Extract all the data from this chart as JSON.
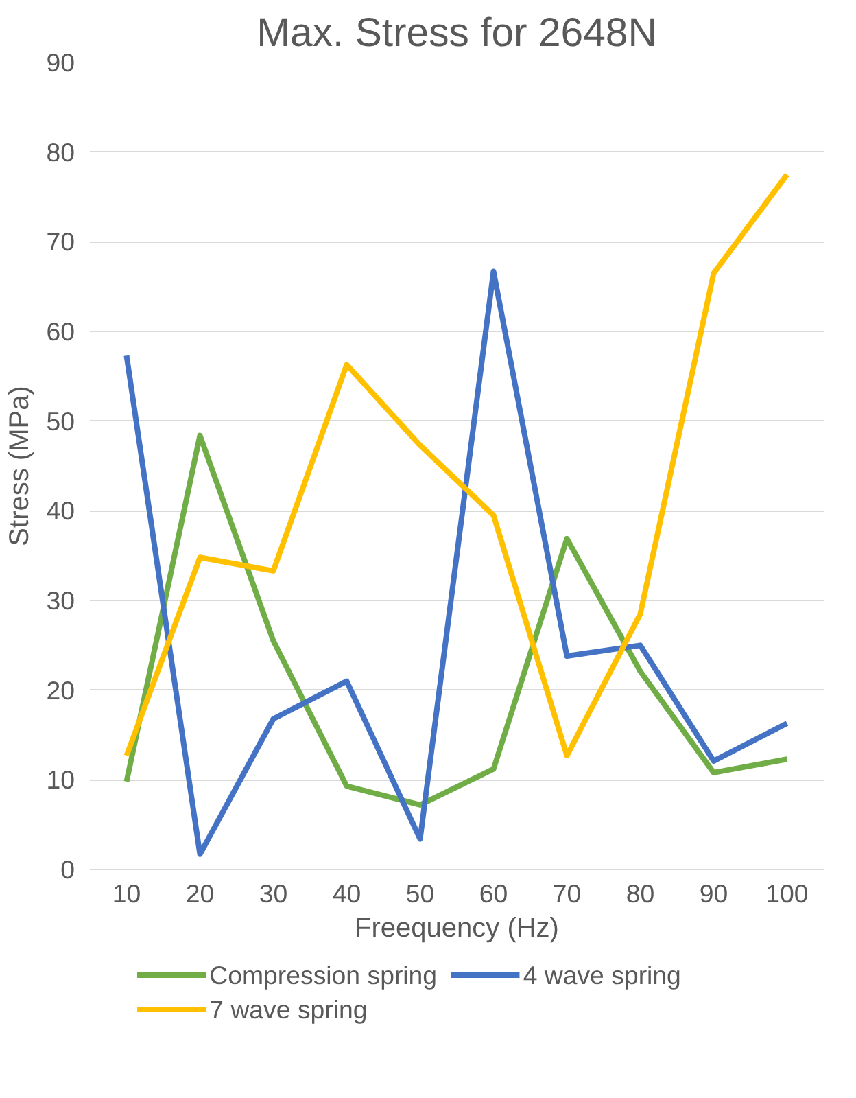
{
  "chart_data": {
    "type": "line",
    "title": "Max. Stress for 2648N",
    "xlabel": "Freequency (Hz)",
    "ylabel": "Stress (MPa)",
    "categories": [
      "10",
      "20",
      "30",
      "40",
      "50",
      "60",
      "70",
      "80",
      "90",
      "100"
    ],
    "series": [
      {
        "name": "Compression spring",
        "color": "#70ad47",
        "values": [
          9.8,
          48.4,
          25.5,
          9.3,
          7.2,
          11.2,
          36.9,
          22.1,
          10.8,
          12.3
        ]
      },
      {
        "name": "4 wave spring",
        "color": "#4472c4",
        "values": [
          57.3,
          1.7,
          16.8,
          21.0,
          3.4,
          66.7,
          23.8,
          25.0,
          12.1,
          16.3
        ]
      },
      {
        "name": "7 wave spring",
        "color": "#ffc000",
        "values": [
          12.7,
          34.8,
          33.3,
          56.3,
          47.3,
          39.5,
          12.7,
          28.5,
          66.5,
          77.5
        ]
      }
    ],
    "ylim": [
      0,
      90
    ],
    "yticks": [
      0,
      10,
      20,
      30,
      40,
      50,
      60,
      70,
      80,
      90
    ],
    "grid": "y",
    "legend": "bottom",
    "marker": "none",
    "line_style": "solid"
  }
}
